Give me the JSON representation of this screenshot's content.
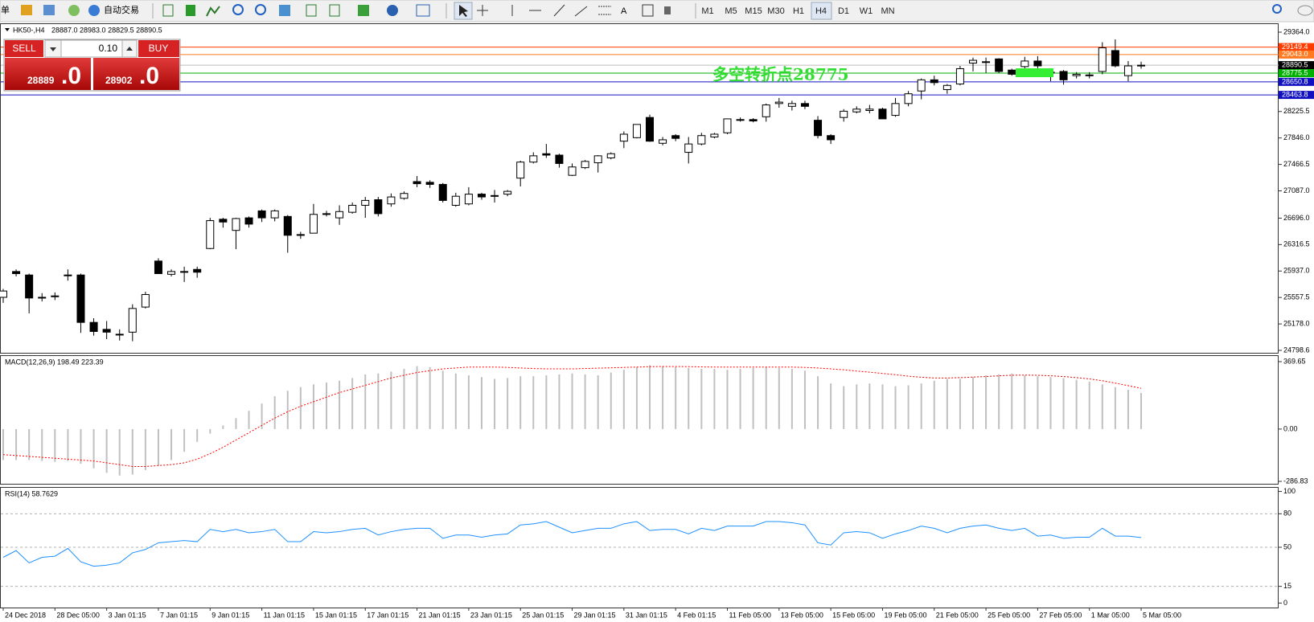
{
  "toolbar": {
    "menu": "单",
    "auto_trade": "自动交易",
    "text_tool": "A",
    "timeframes": [
      "M1",
      "M5",
      "M15",
      "M30",
      "H1",
      "H4",
      "D1",
      "W1",
      "MN"
    ]
  },
  "trade_panel": {
    "sell": "SELL",
    "lot": "0.10",
    "buy": "BUY",
    "bid": "28889",
    "bid_frac": ".0",
    "ask": "28902",
    "ask_frac": ".0"
  },
  "chart_data": [
    {
      "type": "candlestick",
      "title": "HK50-,H4",
      "subtitle": "28887.0 28983.0 28829.5 28890.5",
      "up_color": "#ffffff",
      "down_color": "#000000",
      "annotation": "多空转折点28775",
      "categories": [
        "24 Dec 2018",
        null,
        null,
        null,
        "28 Dec 05:00",
        null,
        null,
        null,
        "3 Jan 01:15",
        null,
        null,
        null,
        "7 Jan 01:15",
        null,
        null,
        null,
        "9 Jan 01:15",
        null,
        null,
        null,
        "11 Jan 01:15",
        null,
        null,
        null,
        "15 Jan 01:15",
        null,
        null,
        null,
        "17 Jan 01:15",
        null,
        null,
        null,
        "21 Jan 01:15",
        null,
        null,
        null,
        "23 Jan 01:15",
        null,
        null,
        null,
        "25 Jan 01:15",
        null,
        null,
        null,
        "29 Jan 01:15",
        null,
        null,
        null,
        "31 Jan 01:15",
        null,
        null,
        null,
        "4 Feb 01:15",
        null,
        null,
        null,
        "11 Feb 05:00",
        null,
        null,
        null,
        "13 Feb 05:00",
        null,
        null,
        null,
        "15 Feb 05:00",
        null,
        null,
        null,
        "19 Feb 05:00",
        null,
        null,
        null,
        "21 Feb 05:00",
        null,
        null,
        null,
        "25 Feb 05:00",
        null,
        null,
        null,
        "27 Feb 05:00",
        null,
        null,
        null,
        "1 Mar 05:00",
        null,
        null,
        null,
        "5 Mar 05:00"
      ],
      "ohlc": [
        [
          25560,
          25680,
          25480,
          25650
        ],
        [
          25930,
          25960,
          25860,
          25900
        ],
        [
          25880,
          25900,
          25330,
          25550
        ],
        [
          25560,
          25620,
          25500,
          25560
        ],
        [
          25570,
          25630,
          25520,
          25580
        ],
        [
          25880,
          25960,
          25800,
          25880
        ],
        [
          25880,
          25900,
          25050,
          25200
        ],
        [
          25200,
          25260,
          25010,
          25070
        ],
        [
          25100,
          25220,
          24960,
          25060
        ],
        [
          25030,
          25100,
          24940,
          25030
        ],
        [
          25060,
          25460,
          24930,
          25400
        ],
        [
          25420,
          25640,
          25400,
          25600
        ],
        [
          26080,
          26120,
          25900,
          25900
        ],
        [
          25890,
          25960,
          25860,
          25930
        ],
        [
          25930,
          26000,
          25780,
          25930
        ],
        [
          25960,
          26000,
          25840,
          25920
        ],
        [
          26260,
          26700,
          26250,
          26660
        ],
        [
          26680,
          26700,
          26560,
          26640
        ],
        [
          26520,
          26700,
          26250,
          26690
        ],
        [
          26700,
          26720,
          26560,
          26610
        ],
        [
          26800,
          26820,
          26640,
          26700
        ],
        [
          26700,
          26820,
          26650,
          26800
        ],
        [
          26720,
          26740,
          26200,
          26450
        ],
        [
          26460,
          26500,
          26400,
          26460
        ],
        [
          26480,
          26900,
          26480,
          26750
        ],
        [
          26750,
          26800,
          26720,
          26760
        ],
        [
          26700,
          26880,
          26600,
          26790
        ],
        [
          26780,
          26920,
          26760,
          26880
        ],
        [
          26880,
          27000,
          26700,
          26950
        ],
        [
          26960,
          27000,
          26720,
          26760
        ],
        [
          26900,
          27050,
          26860,
          27000
        ],
        [
          26980,
          27080,
          26960,
          27050
        ],
        [
          27220,
          27300,
          27140,
          27190
        ],
        [
          27210,
          27240,
          27130,
          27180
        ],
        [
          27180,
          27200,
          26920,
          26950
        ],
        [
          26880,
          27060,
          26860,
          27010
        ],
        [
          26900,
          27140,
          26880,
          27040
        ],
        [
          27040,
          27060,
          26960,
          27000
        ],
        [
          27020,
          27100,
          26920,
          27020
        ],
        [
          27040,
          27100,
          27010,
          27080
        ],
        [
          27270,
          27520,
          27150,
          27500
        ],
        [
          27500,
          27640,
          27480,
          27590
        ],
        [
          27620,
          27760,
          27560,
          27600
        ],
        [
          27600,
          27620,
          27420,
          27480
        ],
        [
          27310,
          27480,
          27300,
          27430
        ],
        [
          27420,
          27530,
          27400,
          27510
        ],
        [
          27490,
          27600,
          27350,
          27590
        ],
        [
          27560,
          27640,
          27540,
          27620
        ],
        [
          27800,
          27940,
          27700,
          27900
        ],
        [
          27850,
          28000,
          27840,
          28040
        ],
        [
          28140,
          28180,
          27790,
          27800
        ],
        [
          27770,
          27860,
          27740,
          27820
        ],
        [
          27880,
          27900,
          27800,
          27840
        ],
        [
          27640,
          27860,
          27480,
          27760
        ],
        [
          27760,
          27920,
          27740,
          27880
        ],
        [
          27860,
          27920,
          27840,
          27900
        ],
        [
          27920,
          28120,
          27900,
          28120
        ],
        [
          28110,
          28140,
          28080,
          28110
        ],
        [
          28110,
          28130,
          28070,
          28090
        ],
        [
          28150,
          28340,
          28080,
          28320
        ],
        [
          28340,
          28420,
          28280,
          28360
        ],
        [
          28300,
          28380,
          28240,
          28340
        ],
        [
          28340,
          28380,
          28260,
          28300
        ],
        [
          28100,
          28160,
          27840,
          27880
        ],
        [
          27880,
          27900,
          27760,
          27820
        ],
        [
          28140,
          28260,
          28080,
          28230
        ],
        [
          28220,
          28300,
          28200,
          28260
        ],
        [
          28240,
          28320,
          28200,
          28260
        ],
        [
          28260,
          28280,
          28120,
          28120
        ],
        [
          28170,
          28420,
          28150,
          28340
        ],
        [
          28340,
          28520,
          28300,
          28480
        ],
        [
          28520,
          28700,
          28400,
          28680
        ],
        [
          28680,
          28740,
          28600,
          28640
        ],
        [
          28540,
          28620,
          28480,
          28600
        ],
        [
          28620,
          28880,
          28600,
          28840
        ],
        [
          28920,
          29000,
          28800,
          28960
        ],
        [
          28940,
          29000,
          28780,
          28940
        ],
        [
          28980,
          28990,
          28780,
          28800
        ],
        [
          28820,
          28840,
          28740,
          28760
        ],
        [
          28870,
          29010,
          28830,
          28950
        ],
        [
          28950,
          29020,
          28840,
          28880
        ],
        [
          28790,
          28820,
          28660,
          28790
        ],
        [
          28800,
          28820,
          28610,
          28680
        ],
        [
          28740,
          28790,
          28700,
          28760
        ],
        [
          28750,
          28790,
          28700,
          28750
        ],
        [
          28800,
          29220,
          28760,
          29140
        ],
        [
          29100,
          29260,
          28860,
          28880
        ],
        [
          28740,
          28950,
          28660,
          28880
        ],
        [
          28880,
          28940,
          28840,
          28890
        ]
      ],
      "ylim": [
        24764,
        29491
      ],
      "yticks": [
        {
          "value": 29364,
          "label": "29364.0"
        },
        28225.5,
        {
          "value": 27846,
          "label": "27846.0"
        },
        27466.5,
        {
          "value": 27087,
          "label": "27087.0"
        },
        {
          "value": 26696,
          "label": "26696.0"
        },
        26316.5,
        {
          "value": 25937,
          "label": "25937.0"
        },
        25557.5,
        {
          "value": 25178,
          "label": "25178.0"
        },
        24798.6
      ],
      "levels": [
        {
          "value": 29149.4,
          "color": "#ff3c00"
        },
        {
          "value": 29043,
          "label": "29043.0",
          "color": "#ff7a20"
        },
        {
          "value": 28890.5,
          "color": "#000000"
        },
        {
          "value": 28775.5,
          "color": "#00b000"
        },
        {
          "value": 28650.8,
          "color": "#1010c0"
        },
        {
          "value": 28463.8,
          "color": "#1010c0"
        }
      ]
    },
    {
      "type": "macd",
      "title": "MACD(12,26,9) 198.49 223.39",
      "histogram": {
        "color": "#c0c0c0",
        "values": [
          -170,
          -170,
          -170,
          -175,
          -180,
          -175,
          -190,
          -215,
          -240,
          -255,
          -250,
          -225,
          -200,
          -170,
          -125,
          -70,
          -25,
          20,
          60,
          100,
          140,
          180,
          210,
          230,
          245,
          255,
          265,
          280,
          300,
          305,
          315,
          330,
          345,
          340,
          320,
          305,
          295,
          285,
          275,
          280,
          290,
          290,
          295,
          300,
          305,
          300,
          295,
          310,
          325,
          340,
          350,
          345,
          340,
          335,
          330,
          330,
          325,
          330,
          335,
          340,
          335,
          330,
          320,
          290,
          250,
          235,
          245,
          250,
          245,
          235,
          240,
          250,
          265,
          275,
          275,
          285,
          295,
          300,
          305,
          295,
          290,
          285,
          280,
          270,
          260,
          245,
          230,
          215,
          198.49
        ]
      },
      "signal": {
        "color": "#ff0000",
        "values": [
          -140,
          -145,
          -150,
          -155,
          -160,
          -165,
          -170,
          -175,
          -185,
          -195,
          -205,
          -205,
          -200,
          -195,
          -185,
          -165,
          -135,
          -100,
          -60,
          -20,
          20,
          60,
          95,
          125,
          150,
          175,
          200,
          220,
          240,
          260,
          280,
          295,
          310,
          320,
          330,
          335,
          340,
          340,
          340,
          338,
          335,
          332,
          330,
          330,
          330,
          332,
          334,
          336,
          338,
          340,
          342,
          343,
          343,
          342,
          341,
          340,
          340,
          340,
          340,
          340,
          340,
          340,
          338,
          335,
          330,
          325,
          318,
          312,
          305,
          298,
          290,
          284,
          280,
          280,
          282,
          285,
          288,
          292,
          295,
          296,
          295,
          292,
          288,
          282,
          275,
          265,
          252,
          238,
          223.39
        ]
      },
      "ylim": [
        -300,
        405
      ],
      "yticks": [
        369.65,
        {
          "value": 0,
          "label": "0.00"
        },
        -286.83
      ]
    },
    {
      "type": "line",
      "title": "RSI(14) 58.7629",
      "color": "#1e90ff",
      "values": [
        41,
        47,
        36,
        41,
        42,
        49,
        37,
        33,
        34,
        36,
        45,
        48,
        54,
        55,
        56,
        55,
        66,
        64,
        66,
        63,
        64,
        66,
        55,
        55,
        64,
        63,
        64,
        66,
        67,
        61,
        64,
        66,
        67,
        67,
        58,
        61,
        61,
        59,
        61,
        62,
        70,
        71,
        73,
        68,
        63,
        65,
        67,
        67,
        71,
        73,
        65,
        66,
        66,
        62,
        67,
        65,
        69,
        69,
        69,
        73,
        73,
        72,
        70,
        54,
        52,
        63,
        64,
        63,
        58,
        62,
        65,
        69,
        67,
        63,
        67,
        69,
        70,
        67,
        65,
        67,
        60,
        61,
        58,
        59,
        59,
        67,
        60,
        60,
        58.7629
      ],
      "ylim": [
        -4,
        104
      ],
      "yticks": [
        100,
        80,
        50,
        15,
        0
      ],
      "levels": [
        80,
        50,
        15
      ]
    }
  ]
}
